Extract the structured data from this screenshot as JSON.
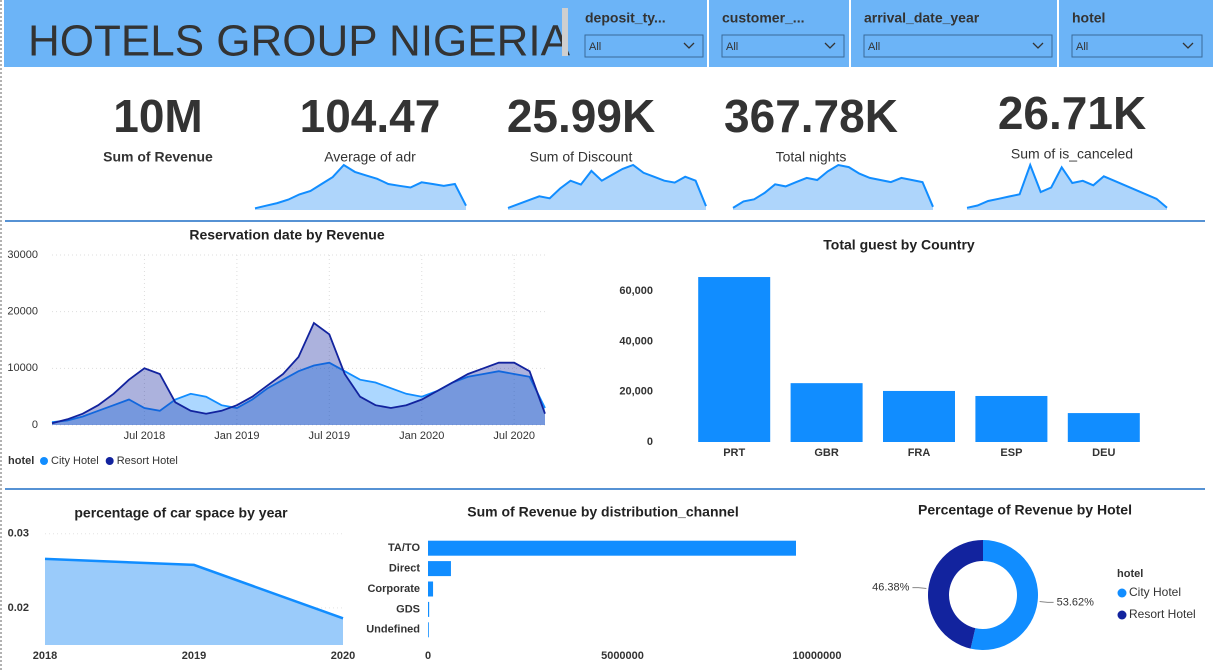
{
  "header": {
    "title": "HOTELS GROUP NIGERIA",
    "slicers": [
      {
        "label": "deposit_ty...",
        "value": "All"
      },
      {
        "label": "customer_...",
        "value": "All"
      },
      {
        "label": "arrival_date_year",
        "value": "All"
      },
      {
        "label": "hotel",
        "value": "All"
      }
    ]
  },
  "kpis": [
    {
      "value": "10M",
      "label": "Sum of Revenue"
    },
    {
      "value": "104.47",
      "label": "Average of adr",
      "sparkline": [
        2,
        5,
        8,
        12,
        18,
        22,
        30,
        38,
        52,
        44,
        40,
        36,
        30,
        28,
        26,
        32,
        30,
        28,
        30,
        5
      ]
    },
    {
      "value": "25.99K",
      "label": "Sum of Discount",
      "sparkline": [
        2,
        6,
        10,
        14,
        12,
        22,
        30,
        26,
        40,
        30,
        36,
        42,
        46,
        38,
        34,
        30,
        28,
        34,
        30,
        4
      ]
    },
    {
      "value": "367.78K",
      "label": "Total nights",
      "sparkline": [
        2,
        8,
        10,
        16,
        24,
        22,
        26,
        30,
        28,
        36,
        42,
        40,
        34,
        30,
        28,
        26,
        30,
        28,
        26,
        3
      ]
    },
    {
      "value": "26.71K",
      "label": "Sum of is_canceled",
      "sparkline": [
        2,
        4,
        8,
        10,
        12,
        14,
        40,
        16,
        20,
        38,
        24,
        26,
        22,
        30,
        26,
        22,
        18,
        14,
        10,
        2
      ]
    }
  ],
  "chart_data": [
    {
      "type": "line",
      "title": "Reservation date by Revenue",
      "legend_title": "hotel",
      "x": [
        "2018-01",
        "2018-02",
        "2018-03",
        "2018-04",
        "2018-05",
        "2018-06",
        "2018-07",
        "2018-08",
        "2018-09",
        "2018-10",
        "2018-11",
        "2018-12",
        "2019-01",
        "2019-02",
        "2019-03",
        "2019-04",
        "2019-05",
        "2019-06",
        "2019-07",
        "2019-08",
        "2019-09",
        "2019-10",
        "2019-11",
        "2019-12",
        "2020-01",
        "2020-02",
        "2020-03",
        "2020-04",
        "2020-05",
        "2020-06",
        "2020-07",
        "2020-08",
        "2020-09"
      ],
      "series": [
        {
          "name": "City Hotel",
          "color": "#118DFF",
          "values": [
            500,
            800,
            1500,
            2500,
            3500,
            4500,
            3000,
            2500,
            4500,
            5500,
            5000,
            3500,
            3000,
            4500,
            6500,
            8000,
            9500,
            10500,
            11000,
            9500,
            8000,
            7500,
            6500,
            5500,
            5000,
            6000,
            7500,
            8500,
            9000,
            9500,
            9000,
            8500,
            3000
          ]
        },
        {
          "name": "Resort Hotel",
          "color": "#12239E",
          "values": [
            300,
            1000,
            2000,
            3500,
            5500,
            8000,
            10000,
            9000,
            4000,
            2500,
            2000,
            2500,
            3500,
            5000,
            7000,
            9000,
            12000,
            18000,
            16000,
            9000,
            5000,
            3500,
            3000,
            3500,
            4500,
            6000,
            7500,
            9000,
            10000,
            11000,
            11000,
            9500,
            2000
          ]
        }
      ],
      "xlim": [
        "2018-01",
        "2020-09"
      ],
      "xticks": [
        {
          "value": "2018-07",
          "label": "Jul 2018"
        },
        {
          "value": "2019-01",
          "label": "Jan 2019"
        },
        {
          "value": "2019-07",
          "label": "Jul 2019"
        },
        {
          "value": "2020-01",
          "label": "Jan 2020"
        },
        {
          "value": "2020-07",
          "label": "Jul 2020"
        }
      ],
      "ylim": [
        0,
        30000
      ],
      "yticks": [
        0,
        10000,
        20000,
        30000
      ],
      "grid": true
    },
    {
      "type": "bar",
      "title": "Total guest by Country",
      "color": "#118DFF",
      "categories": [
        "PRT",
        "GBR",
        "FRA",
        "ESP",
        "DEU"
      ],
      "values": [
        65600,
        23400,
        20300,
        18300,
        11500
      ],
      "ylim": [
        0,
        68000
      ],
      "yticks": [
        0,
        {
          "value": 20000,
          "label": "20,000"
        },
        {
          "value": 40000,
          "label": "40,000"
        },
        {
          "value": 60000,
          "label": "60,000"
        }
      ]
    },
    {
      "type": "area",
      "title": "percentage of car space by year",
      "color": "#118DFF",
      "x": [
        2018,
        2019,
        2020
      ],
      "values": [
        0.0266,
        0.0258,
        0.0186
      ],
      "xlim": [
        2018,
        2020
      ],
      "xticks": [
        2018,
        2019,
        2020
      ],
      "ylim": [
        0.015,
        0.0305
      ],
      "yticks": [
        0.02,
        0.03
      ]
    },
    {
      "type": "bar",
      "horizontal": true,
      "title": "Sum of Revenue by distribution_channel",
      "color": "#118DFF",
      "categories": [
        "TA/TO",
        "Direct",
        "Corporate",
        "GDS",
        "Undefined"
      ],
      "values": [
        9460000,
        590000,
        130000,
        30000,
        5000
      ],
      "xlim": [
        0,
        10000000
      ],
      "xticks": [
        0,
        5000000,
        10000000
      ]
    },
    {
      "type": "donut",
      "title": "Percentage of Revenue by Hotel",
      "legend_title": "hotel",
      "categories": [
        "City Hotel",
        "Resort Hotel"
      ],
      "colors": [
        "#118DFF",
        "#12239E"
      ],
      "values": [
        53.62,
        46.38
      ],
      "value_labels": [
        "53.62%",
        "46.38%"
      ]
    }
  ]
}
